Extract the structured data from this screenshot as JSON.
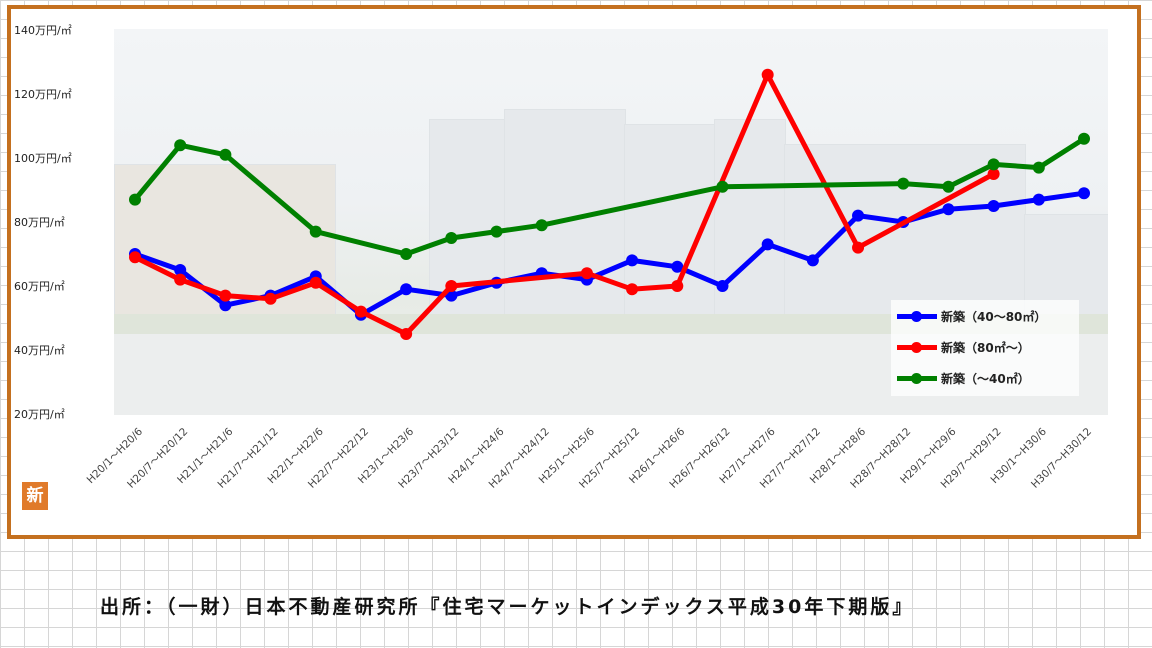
{
  "chart_data": {
    "type": "line",
    "categories": [
      "H20/1～H20/6",
      "H20/7～H20/12",
      "H21/1～H21/6",
      "H21/7～H21/12",
      "H22/1～H22/6",
      "H22/7～H22/12",
      "H23/1～H23/6",
      "H23/7～H23/12",
      "H24/1～H24/6",
      "H24/7～H24/12",
      "H25/1～H25/6",
      "H25/7～H25/12",
      "H26/1～H26/6",
      "H26/7～H26/12",
      "H27/1～H27/6",
      "H27/7～H27/12",
      "H28/1～H28/6",
      "H28/7～H28/12",
      "H29/1～H29/6",
      "H29/7～H29/12",
      "H30/1～H30/6",
      "H30/7～H30/12"
    ],
    "y_ticks": [
      "20万円/㎡",
      "40万円/㎡",
      "60万円/㎡",
      "80万円/㎡",
      "100万円/㎡",
      "120万円/㎡",
      "140万円/㎡"
    ],
    "ylim": [
      20,
      140
    ],
    "series": [
      {
        "name": "新築（40～80㎡）",
        "color": "#0000ff",
        "values": [
          70,
          65,
          54,
          57,
          63,
          51,
          59,
          57,
          61,
          64,
          62,
          68,
          66,
          60,
          73,
          68,
          82,
          80,
          84,
          85,
          87,
          89
        ]
      },
      {
        "name": "新築（80㎡～）",
        "color": "#ff0000",
        "values": [
          69,
          62,
          57,
          56,
          61,
          52,
          45,
          60,
          null,
          null,
          64,
          59,
          60,
          null,
          126,
          null,
          72,
          null,
          null,
          95,
          null,
          null
        ]
      },
      {
        "name": "新築（～40㎡）",
        "color": "#008000",
        "values": [
          87,
          104,
          101,
          null,
          77,
          null,
          70,
          75,
          77,
          79,
          null,
          null,
          null,
          91,
          null,
          null,
          null,
          92,
          91,
          98,
          97,
          106
        ]
      }
    ]
  },
  "caption": "出所：（一財）日本不動産研究所『住宅マーケットインデックス平成30年下期版』",
  "badge": "新"
}
